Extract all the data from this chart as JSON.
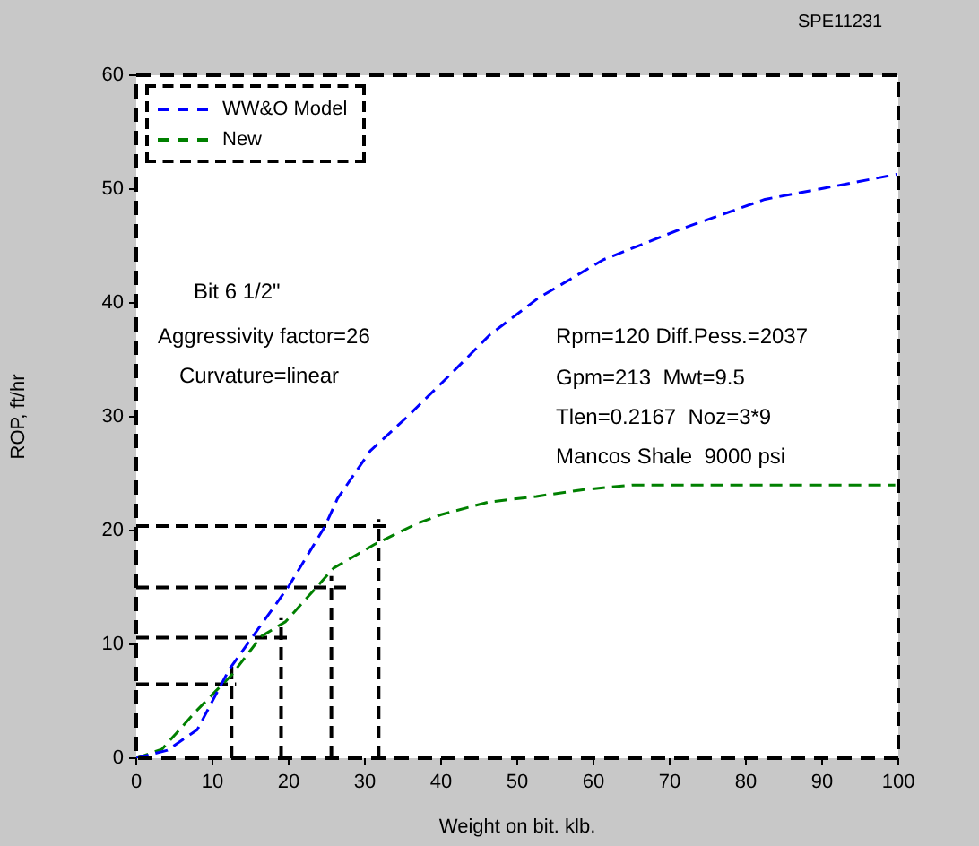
{
  "chart_data": {
    "type": "line",
    "xlabel": "Weight on bit. klb.",
    "ylabel": "ROP, ft/hr",
    "xlim": [
      0,
      100
    ],
    "xticks": [
      0,
      10,
      20,
      30,
      40,
      50,
      60,
      70,
      80,
      90,
      100
    ],
    "ylim": [
      0,
      60
    ],
    "yticks": [
      0,
      10,
      20,
      30,
      40,
      50,
      60
    ],
    "grid": false,
    "legend": "top left",
    "marker": "none",
    "line_style": "dashed",
    "annotations": [
      "SPE11231",
      "Bit 6 1/2\"",
      "Aggressivity factor=26",
      "Curvature=linear",
      "Rpm=120 Diff.Pess.=2037",
      "Gpm=213  Mwt=9.5",
      "Tlen=0.2167  Noz=3*9",
      "Mancos Shale  9000 psi"
    ],
    "series": [
      {
        "name": "WW&O Model",
        "color": "#0000ff",
        "x": [
          0,
          4.1,
          8,
          12.2,
          15.3,
          20,
          24.7,
          26.4,
          30.7,
          35.4,
          40.9,
          46.4,
          52.7,
          61.3,
          71.5,
          82.5,
          90.4,
          99.8
        ],
        "values": [
          0,
          0.7,
          2.5,
          7.8,
          10.7,
          15.1,
          20.3,
          22.8,
          27,
          29.9,
          33.5,
          37.2,
          40.4,
          43.8,
          46.5,
          49.1,
          50.1,
          51.3
        ]
      },
      {
        "name": "New",
        "color": "#008000",
        "x": [
          0,
          3.4,
          7.8,
          12.5,
          16.4,
          19.6,
          25.9,
          31.3,
          36.8,
          40,
          46.2,
          52.5,
          58.8,
          65.1,
          99.6
        ],
        "values": [
          0,
          0.8,
          4.1,
          7.3,
          10.7,
          12,
          16.7,
          18.8,
          20.6,
          21.4,
          22.5,
          23,
          23.6,
          24,
          24
        ]
      },
      {
        "color": "#000000",
        "x": [
          0,
          13.1
        ],
        "values": [
          6.5,
          6.5
        ]
      },
      {
        "color": "#000000",
        "x": [
          12.5,
          12.5
        ],
        "values": [
          0,
          8.5
        ]
      },
      {
        "color": "#000000",
        "x": [
          0,
          20.2
        ],
        "values": [
          10.6,
          10.6
        ]
      },
      {
        "color": "#000000",
        "x": [
          19,
          19
        ],
        "values": [
          0,
          12.3
        ]
      },
      {
        "color": "#000000",
        "x": [
          0,
          27.6
        ],
        "values": [
          15,
          15
        ]
      },
      {
        "color": "#000000",
        "x": [
          25.6,
          25.6
        ],
        "values": [
          0,
          16
        ]
      },
      {
        "color": "#000000",
        "x": [
          0,
          32.9
        ],
        "values": [
          20.4,
          20.4
        ]
      },
      {
        "color": "#000000",
        "x": [
          31.8,
          31.8
        ],
        "values": [
          0,
          21
        ]
      }
    ]
  }
}
